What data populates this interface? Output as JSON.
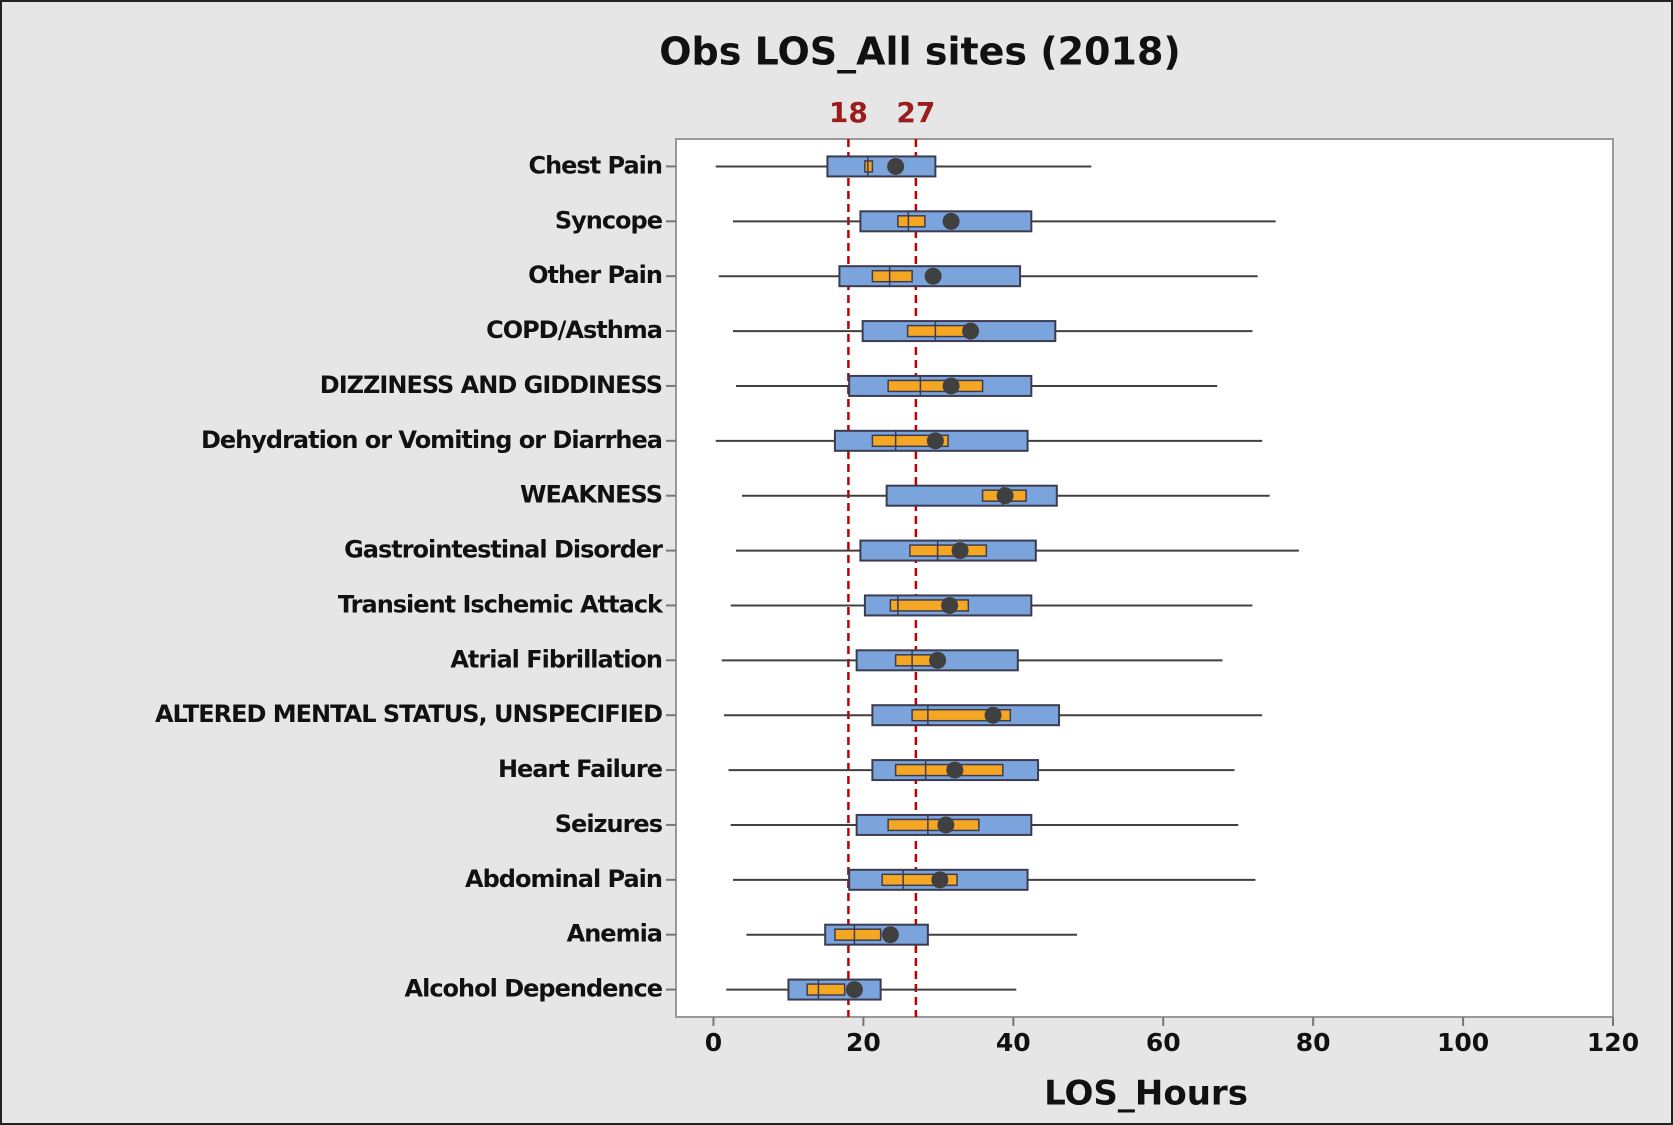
{
  "chart_data": {
    "type": "box",
    "title": "Obs LOS_All sites (2018)",
    "x_label": "LOS_Hours",
    "categories": [
      "Chest Pain",
      "Syncope",
      "Other Pain",
      "COPD/Asthma",
      "DIZZINESS AND GIDDINESS",
      "Dehydration or Vomiting or Diarrhea",
      "WEAKNESS",
      "Gastrointestinal Disorder",
      "Transient Ischemic Attack",
      "Atrial Fibrillation",
      "ALTERED MENTAL STATUS, UNSPECIFIED",
      "Heart Failure",
      "Seizures",
      "Abdominal Pain",
      "Anemia",
      "Alcohol Dependence"
    ],
    "whisker_low": [
      0.3,
      2.6,
      0.7,
      2.6,
      3.0,
      0.3,
      3.8,
      3.0,
      2.3,
      1.1,
      1.4,
      2.0,
      2.3,
      2.6,
      4.4,
      1.7
    ],
    "q1": [
      15.2,
      19.6,
      16.8,
      19.9,
      18.1,
      16.2,
      23.1,
      19.6,
      20.2,
      19.1,
      21.2,
      21.2,
      19.1,
      18.1,
      14.9,
      10.0
    ],
    "median": [
      20.6,
      26.0,
      23.5,
      29.6,
      27.6,
      24.3,
      38.6,
      29.9,
      24.6,
      26.5,
      28.6,
      28.3,
      28.6,
      25.3,
      18.8,
      14.0
    ],
    "q3": [
      29.6,
      42.4,
      40.9,
      45.6,
      42.4,
      41.9,
      45.8,
      43.0,
      42.4,
      40.6,
      46.1,
      43.3,
      42.4,
      41.9,
      28.6,
      22.3
    ],
    "whisker_high": [
      50.4,
      75.0,
      72.6,
      71.9,
      67.2,
      73.2,
      74.2,
      78.1,
      71.9,
      67.9,
      73.2,
      69.5,
      70.0,
      72.3,
      48.5,
      40.4
    ],
    "ci_low": [
      20.2,
      24.6,
      21.2,
      25.9,
      23.3,
      21.2,
      35.9,
      26.2,
      23.6,
      24.3,
      26.5,
      24.3,
      23.3,
      22.5,
      16.2,
      12.5
    ],
    "ci_high": [
      21.2,
      28.2,
      26.5,
      33.7,
      35.9,
      31.3,
      41.7,
      36.4,
      34.0,
      29.6,
      39.6,
      38.6,
      35.4,
      32.5,
      22.3,
      17.5
    ],
    "mean": [
      24.3,
      31.7,
      29.3,
      34.3,
      31.7,
      29.6,
      38.9,
      32.9,
      31.5,
      29.9,
      37.3,
      32.2,
      31.0,
      30.2,
      23.6,
      18.8
    ],
    "box_color": "#7ba3dc",
    "ci_color": "#f5a623",
    "mean_color": "#404040",
    "reference_lines": [
      18,
      27
    ],
    "reference_color": "#c00000",
    "xlim": [
      -5,
      120
    ],
    "xticks": [
      0,
      20,
      40,
      60,
      80,
      100,
      120
    ]
  }
}
